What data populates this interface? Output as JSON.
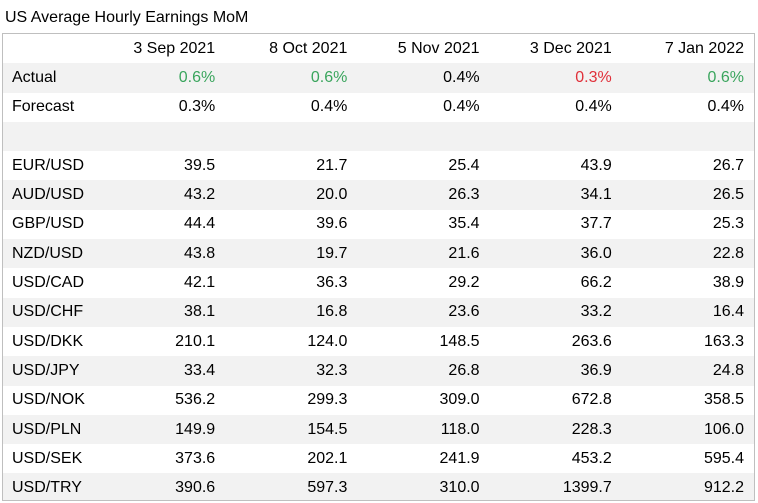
{
  "title": "US Average Hourly Earnings MoM",
  "columns": [
    "3 Sep 2021",
    "8 Oct 2021",
    "5 Nov 2021",
    "3 Dec 2021",
    "7 Jan 2022"
  ],
  "actual": {
    "label": "Actual",
    "values": [
      "0.6%",
      "0.6%",
      "0.4%",
      "0.3%",
      "0.6%"
    ],
    "colors": [
      "up",
      "up",
      "neutral",
      "down",
      "up"
    ]
  },
  "forecast": {
    "label": "Forecast",
    "values": [
      "0.3%",
      "0.4%",
      "0.4%",
      "0.4%",
      "0.4%"
    ]
  },
  "pairs": [
    {
      "label": "EUR/USD",
      "values": [
        "39.5",
        "21.7",
        "25.4",
        "43.9",
        "26.7"
      ]
    },
    {
      "label": "AUD/USD",
      "values": [
        "43.2",
        "20.0",
        "26.3",
        "34.1",
        "26.5"
      ]
    },
    {
      "label": "GBP/USD",
      "values": [
        "44.4",
        "39.6",
        "35.4",
        "37.7",
        "25.3"
      ]
    },
    {
      "label": "NZD/USD",
      "values": [
        "43.8",
        "19.7",
        "21.6",
        "36.0",
        "22.8"
      ]
    },
    {
      "label": "USD/CAD",
      "values": [
        "42.1",
        "36.3",
        "29.2",
        "66.2",
        "38.9"
      ]
    },
    {
      "label": "USD/CHF",
      "values": [
        "38.1",
        "16.8",
        "23.6",
        "33.2",
        "16.4"
      ]
    },
    {
      "label": "USD/DKK",
      "values": [
        "210.1",
        "124.0",
        "148.5",
        "263.6",
        "163.3"
      ]
    },
    {
      "label": "USD/JPY",
      "values": [
        "33.4",
        "32.3",
        "26.8",
        "36.9",
        "24.8"
      ]
    },
    {
      "label": "USD/NOK",
      "values": [
        "536.2",
        "299.3",
        "309.0",
        "672.8",
        "358.5"
      ]
    },
    {
      "label": "USD/PLN",
      "values": [
        "149.9",
        "154.5",
        "118.0",
        "228.3",
        "106.0"
      ]
    },
    {
      "label": "USD/SEK",
      "values": [
        "373.6",
        "202.1",
        "241.9",
        "453.2",
        "595.4"
      ]
    },
    {
      "label": "USD/TRY",
      "values": [
        "390.6",
        "597.3",
        "310.0",
        "1399.7",
        "912.2"
      ]
    }
  ]
}
